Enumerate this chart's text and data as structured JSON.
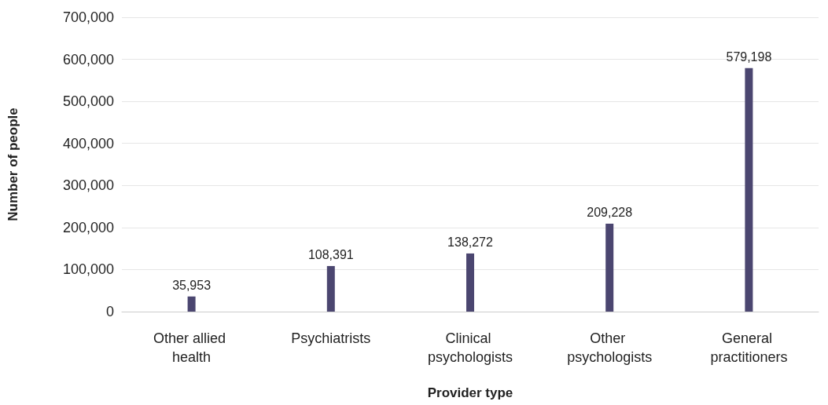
{
  "chart_data": {
    "type": "bar",
    "xlabel": "Provider type",
    "ylabel": "Number of people",
    "categories": [
      "Other allied health",
      "Psychiatrists",
      "Clinical psychologists",
      "Other psychologists",
      "General practitioners"
    ],
    "values": [
      35953,
      108391,
      138272,
      209228,
      579198
    ],
    "value_labels": [
      "35,953",
      "108,391",
      "138,272",
      "209,228",
      "579,198"
    ],
    "color": "#4b4670",
    "ylim": [
      0,
      700000
    ],
    "yticks": [
      0,
      {
        "value": 100000,
        "label": "100,000"
      },
      {
        "value": 200000,
        "label": "200,000"
      },
      {
        "value": 300000,
        "label": "300,000"
      },
      {
        "value": 400000,
        "label": "400,000"
      },
      {
        "value": 500000,
        "label": "500,000"
      },
      {
        "value": 600000,
        "label": "600,000"
      },
      {
        "value": 700000,
        "label": "700,000"
      }
    ],
    "grid": "y"
  }
}
